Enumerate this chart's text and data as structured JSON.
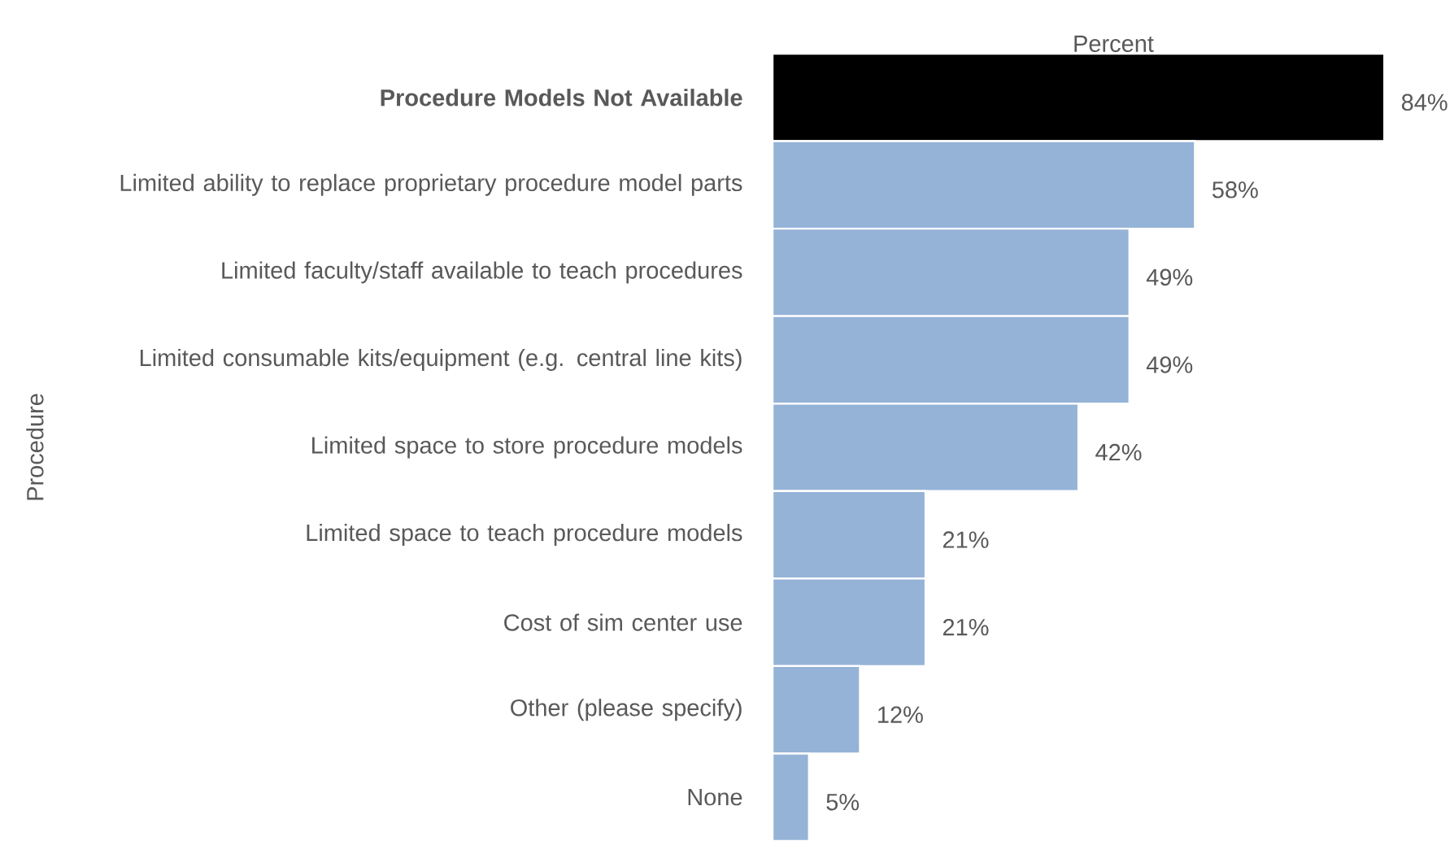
{
  "chart_data": {
    "type": "bar",
    "orientation": "horizontal",
    "xlabel": "Percent",
    "ylabel": "Procedure",
    "categories": [
      "**Procedure Models Not Available**",
      "Limited ability to replace proprietary procedure model parts",
      "Limited faculty/staff available to teach procedures",
      "Limited consumable kits/equipment (e.g. central line kits)",
      "Limited space to store procedure models",
      "Limited space to teach procedure models",
      "Cost of sim center use",
      "Other (please specify)",
      "None"
    ],
    "values": [
      84,
      58,
      49,
      49,
      42,
      21,
      21,
      12,
      5
    ],
    "value_labels": [
      "84%",
      "58%",
      "49%",
      "49%",
      "42%",
      "21%",
      "21%",
      "12%",
      "5%"
    ],
    "colors": [
      "#000000",
      "#95b3d7",
      "#95b3d7",
      "#95b3d7",
      "#95b3d7",
      "#95b3d7",
      "#95b3d7",
      "#95b3d7",
      "#95b3d7"
    ]
  }
}
